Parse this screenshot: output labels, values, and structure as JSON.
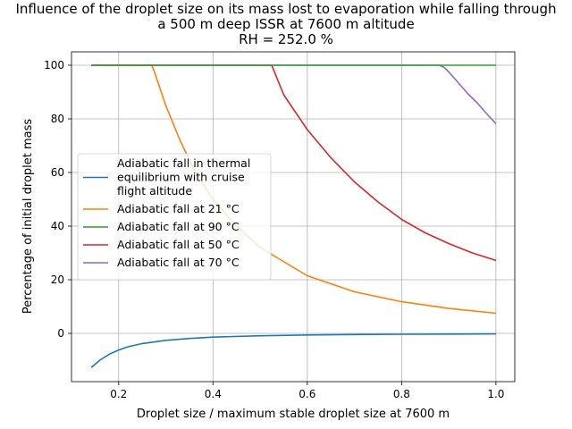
{
  "chart_data": {
    "type": "line",
    "title_lines": [
      "Influence of the droplet size on its mass lost to evaporation while falling through",
      "a 500 m deep ISSR at 7600 m altitude",
      "RH = 252.0 %"
    ],
    "xlabel": "Droplet size / maximum stable droplet size at 7600 m",
    "ylabel": "Percentage of initial droplet mass",
    "xlim": [
      0.1,
      1.04
    ],
    "ylim": [
      -18,
      105
    ],
    "xticks": [
      0.2,
      0.4,
      0.6,
      0.8,
      1.0
    ],
    "xtick_labels": [
      "0.2",
      "0.4",
      "0.6",
      "0.8",
      "1.0"
    ],
    "yticks": [
      0,
      20,
      40,
      60,
      80,
      100
    ],
    "ytick_labels": [
      "0",
      "20",
      "40",
      "60",
      "80",
      "100"
    ],
    "grid": true,
    "legend_position": "center-left",
    "series": [
      {
        "name_lines": [
          "Adiabatic fall in thermal",
          "equilibrium with cruise",
          "flight altitude"
        ],
        "color": "#1f77b4",
        "x": [
          0.142,
          0.16,
          0.18,
          0.2,
          0.22,
          0.25,
          0.3,
          0.35,
          0.4,
          0.5,
          0.6,
          0.7,
          0.8,
          0.9,
          1.0
        ],
        "y": [
          -12.7,
          -10.0,
          -7.8,
          -6.2,
          -5.0,
          -3.8,
          -2.6,
          -1.9,
          -1.4,
          -0.9,
          -0.6,
          -0.45,
          -0.35,
          -0.25,
          -0.2
        ]
      },
      {
        "name_lines": [
          "Adiabatic fall at 21 °C"
        ],
        "color": "#ff7f0e",
        "x": [
          0.142,
          0.2,
          0.27,
          0.275,
          0.3,
          0.33,
          0.36,
          0.4,
          0.45,
          0.5,
          0.6,
          0.7,
          0.8,
          0.9,
          1.0
        ],
        "y": [
          100,
          100,
          100,
          98,
          85,
          72,
          61,
          50,
          40,
          32,
          21.5,
          15.5,
          11.8,
          9.3,
          7.5
        ]
      },
      {
        "name_lines": [
          "Adiabatic fall at 90 °C"
        ],
        "color": "#2ca02c",
        "x": [
          0.142,
          0.4,
          0.6,
          0.8,
          1.0
        ],
        "y": [
          100,
          100,
          100,
          100,
          100
        ]
      },
      {
        "name_lines": [
          "Adiabatic fall at 50 °C"
        ],
        "color": "#d62728",
        "x": [
          0.142,
          0.4,
          0.52,
          0.525,
          0.55,
          0.6,
          0.65,
          0.7,
          0.75,
          0.8,
          0.85,
          0.9,
          0.95,
          1.0
        ],
        "y": [
          100,
          100,
          100,
          99.8,
          89,
          76,
          65.5,
          56.5,
          49,
          42.5,
          37.5,
          33.5,
          30,
          27.2
        ]
      },
      {
        "name_lines": [
          "Adiabatic fall at 70 °C"
        ],
        "color": "#9467bd",
        "x": [
          0.142,
          0.5,
          0.8,
          0.88,
          0.89,
          0.9,
          0.92,
          0.94,
          0.96,
          0.98,
          1.0
        ],
        "y": [
          100,
          100,
          100,
          100,
          99.2,
          97.5,
          93.5,
          89.5,
          86,
          82,
          78.2
        ]
      }
    ]
  }
}
